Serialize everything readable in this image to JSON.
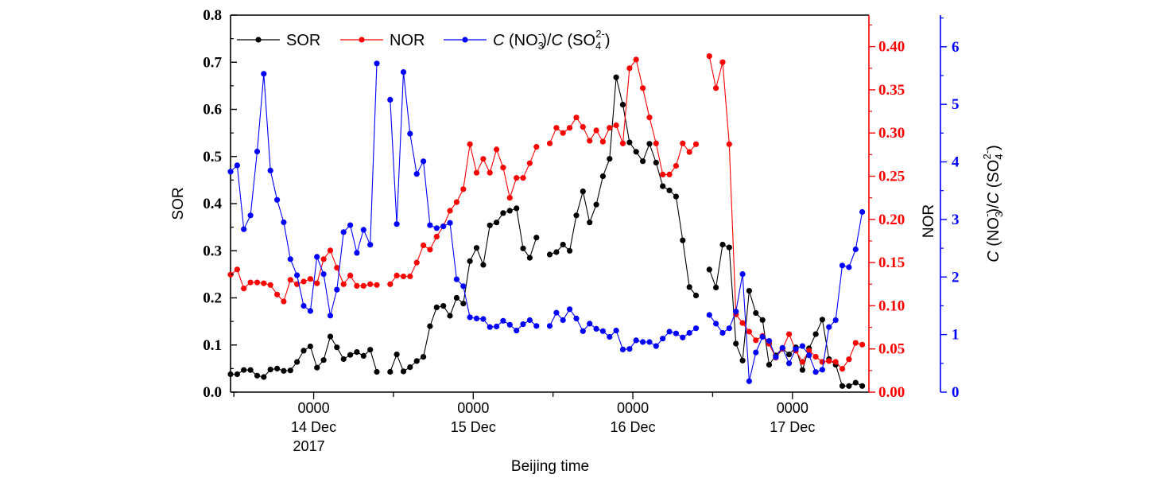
{
  "chart_data": {
    "type": "line",
    "xlabel": "Beijing time",
    "x_ticks": [
      {
        "x": 24,
        "lines": [
          "0000",
          "14 Dec",
          "2017"
        ]
      },
      {
        "x": 48,
        "lines": [
          "0000",
          "15 Dec"
        ]
      },
      {
        "x": 72,
        "lines": [
          "0000",
          "16 Dec"
        ]
      },
      {
        "x": 96,
        "lines": [
          "0000",
          "17 Dec"
        ]
      }
    ],
    "x_range": [
      11.5,
      107.5
    ],
    "axes": {
      "left": {
        "label": "SOR",
        "color": "#000000",
        "ylim": [
          0,
          0.8
        ],
        "ticks": [
          "0.0",
          "0.1",
          "0.2",
          "0.3",
          "0.4",
          "0.5",
          "0.6",
          "0.7",
          "0.8"
        ]
      },
      "right1": {
        "label": "NOR",
        "color": "#ff0000",
        "ylim": [
          0,
          0.4365
        ],
        "ticks": [
          "0.00",
          "0.05",
          "0.10",
          "0.15",
          "0.20",
          "0.25",
          "0.30",
          "0.35",
          "0.40"
        ]
      },
      "right2": {
        "label_parts": {
          "c1": "C",
          "mid1": " (NO",
          "sub1": "3",
          "sup1": "-",
          "mid2": ")/",
          "c2": "C",
          "mid3": " (SO",
          "sub2": "4",
          "sup2": "2-",
          "end": ")"
        },
        "color": "#0000ff",
        "ylim": [
          0,
          6.55
        ],
        "ticks": [
          "0",
          "1",
          "2",
          "3",
          "4",
          "5",
          "6"
        ]
      }
    },
    "legend": {
      "placement": "top-left",
      "entries": [
        {
          "label": "SOR",
          "color": "#000000"
        },
        {
          "label": "NOR",
          "color": "#ff0000"
        },
        {
          "label_parts": {
            "c1": "C",
            "mid1": " (NO",
            "sub1": "3",
            "sup1": "-",
            "mid2": ")/",
            "c2": "C",
            "mid3": " (SO",
            "sub2": "4",
            "sup2": "2-",
            "end": ")"
          },
          "color": "#0000ff"
        }
      ]
    },
    "series": [
      {
        "name": "SOR",
        "axis": "left",
        "color": "#000000",
        "points": [
          [
            11.5,
            0.038
          ],
          [
            12.5,
            0.038
          ],
          [
            13.5,
            0.047
          ],
          [
            14.5,
            0.047
          ],
          [
            15.5,
            0.035
          ],
          [
            16.5,
            0.032
          ],
          [
            17.5,
            0.048
          ],
          [
            18.5,
            0.05
          ],
          [
            19.5,
            0.045
          ],
          [
            20.5,
            0.046
          ],
          [
            21.5,
            0.064
          ],
          [
            22.5,
            0.088
          ],
          [
            23.5,
            0.097
          ],
          [
            24.5,
            0.052
          ],
          [
            25.5,
            0.068
          ],
          [
            26.5,
            0.118
          ],
          [
            27.5,
            0.095
          ],
          [
            28.5,
            0.07
          ],
          [
            29.5,
            0.079
          ],
          [
            30.5,
            0.085
          ],
          [
            31.5,
            0.077
          ],
          [
            32.5,
            0.09
          ],
          [
            33.5,
            0.043
          ],
          null,
          [
            35.5,
            0.043
          ],
          [
            36.5,
            0.08
          ],
          [
            37.5,
            0.044
          ],
          [
            38.5,
            0.053
          ],
          [
            39.5,
            0.066
          ],
          [
            40.5,
            0.075
          ],
          [
            41.5,
            0.14
          ],
          [
            42.5,
            0.18
          ],
          [
            43.5,
            0.183
          ],
          [
            44.5,
            0.162
          ],
          [
            45.5,
            0.2
          ],
          [
            46.5,
            0.188
          ],
          [
            47.5,
            0.278
          ],
          [
            48.5,
            0.306
          ],
          [
            49.5,
            0.27
          ],
          [
            50.5,
            0.354
          ],
          [
            51.5,
            0.36
          ],
          [
            52.5,
            0.38
          ],
          [
            53.5,
            0.385
          ],
          [
            54.5,
            0.39
          ],
          [
            55.5,
            0.305
          ],
          [
            56.5,
            0.285
          ],
          [
            57.5,
            0.328
          ],
          null,
          [
            59.5,
            0.292
          ],
          [
            60.5,
            0.297
          ],
          [
            61.5,
            0.313
          ],
          [
            62.5,
            0.3
          ],
          [
            63.5,
            0.375
          ],
          [
            64.5,
            0.426
          ],
          [
            65.5,
            0.36
          ],
          [
            66.5,
            0.398
          ],
          [
            67.5,
            0.458
          ],
          [
            68.5,
            0.495
          ],
          [
            69.5,
            0.668
          ],
          [
            70.5,
            0.61
          ],
          [
            71.5,
            0.53
          ],
          [
            72.5,
            0.51
          ],
          [
            73.5,
            0.49
          ],
          [
            74.5,
            0.527
          ],
          [
            75.5,
            0.487
          ],
          [
            76.5,
            0.437
          ],
          [
            77.5,
            0.428
          ],
          [
            78.5,
            0.415
          ],
          [
            79.5,
            0.322
          ],
          [
            80.5,
            0.223
          ],
          [
            81.5,
            0.205
          ],
          null,
          [
            83.5,
            0.26
          ],
          [
            84.5,
            0.222
          ],
          [
            85.5,
            0.313
          ],
          [
            86.5,
            0.307
          ],
          [
            87.5,
            0.103
          ],
          [
            88.5,
            0.067
          ],
          [
            89.5,
            0.215
          ],
          [
            90.5,
            0.168
          ],
          [
            91.5,
            0.153
          ],
          [
            92.5,
            0.058
          ],
          [
            93.5,
            0.078
          ],
          [
            94.5,
            0.093
          ],
          [
            95.5,
            0.08
          ],
          [
            96.5,
            0.095
          ],
          [
            97.5,
            0.047
          ],
          [
            98.5,
            0.093
          ],
          [
            99.5,
            0.123
          ],
          [
            100.5,
            0.154
          ],
          [
            101.5,
            0.07
          ],
          [
            102.5,
            0.058
          ],
          [
            103.5,
            0.013
          ],
          [
            104.5,
            0.013
          ],
          [
            105.5,
            0.02
          ],
          [
            106.5,
            0.013
          ]
        ]
      },
      {
        "name": "NOR",
        "axis": "right1",
        "color": "#ff0000",
        "points": [
          [
            11.5,
            0.136
          ],
          [
            12.5,
            0.142
          ],
          [
            13.5,
            0.12
          ],
          [
            14.5,
            0.127
          ],
          [
            15.5,
            0.127
          ],
          [
            16.5,
            0.126
          ],
          [
            17.5,
            0.124
          ],
          [
            18.5,
            0.113
          ],
          [
            19.5,
            0.105
          ],
          [
            20.5,
            0.13
          ],
          [
            21.5,
            0.125
          ],
          [
            22.5,
            0.128
          ],
          [
            23.5,
            0.131
          ],
          [
            24.5,
            0.126
          ],
          [
            25.5,
            0.154
          ],
          [
            26.5,
            0.164
          ],
          [
            27.5,
            0.144
          ],
          [
            28.5,
            0.125
          ],
          [
            29.5,
            0.135
          ],
          [
            30.5,
            0.123
          ],
          [
            31.5,
            0.123
          ],
          [
            32.5,
            0.125
          ],
          [
            33.5,
            0.124
          ],
          null,
          [
            35.5,
            0.125
          ],
          [
            36.5,
            0.135
          ],
          [
            37.5,
            0.134
          ],
          [
            38.5,
            0.134
          ],
          [
            39.5,
            0.15
          ],
          [
            40.5,
            0.17
          ],
          [
            41.5,
            0.165
          ],
          [
            42.5,
            0.18
          ],
          [
            43.5,
            0.192
          ],
          [
            44.5,
            0.21
          ],
          [
            45.5,
            0.22
          ],
          [
            46.5,
            0.235
          ],
          [
            47.5,
            0.287
          ],
          [
            48.5,
            0.254
          ],
          [
            49.5,
            0.27
          ],
          [
            50.5,
            0.254
          ],
          [
            51.5,
            0.281
          ],
          [
            52.5,
            0.26
          ],
          [
            53.5,
            0.225
          ],
          [
            54.5,
            0.248
          ],
          [
            55.5,
            0.248
          ],
          [
            56.5,
            0.265
          ],
          [
            57.5,
            0.284
          ],
          null,
          [
            59.5,
            0.288
          ],
          [
            60.5,
            0.306
          ],
          [
            61.5,
            0.3
          ],
          [
            62.5,
            0.306
          ],
          [
            63.5,
            0.318
          ],
          [
            64.5,
            0.307
          ],
          [
            65.5,
            0.291
          ],
          [
            66.5,
            0.303
          ],
          [
            67.5,
            0.29
          ],
          [
            68.5,
            0.306
          ],
          [
            69.5,
            0.309
          ],
          [
            70.5,
            0.288
          ],
          [
            71.5,
            0.375
          ],
          [
            72.5,
            0.385
          ],
          [
            73.5,
            0.352
          ],
          [
            74.5,
            0.318
          ],
          [
            75.5,
            0.288
          ],
          [
            76.5,
            0.252
          ],
          [
            77.5,
            0.252
          ],
          [
            78.5,
            0.262
          ],
          [
            79.5,
            0.288
          ],
          [
            80.5,
            0.278
          ],
          [
            81.5,
            0.287
          ],
          null,
          [
            83.5,
            0.389
          ],
          [
            84.5,
            0.352
          ],
          [
            85.5,
            0.382
          ],
          [
            86.5,
            0.287
          ],
          [
            87.5,
            0.09
          ],
          [
            88.5,
            0.08
          ],
          [
            89.5,
            0.07
          ],
          [
            90.5,
            0.06
          ],
          [
            91.5,
            0.065
          ],
          [
            92.5,
            0.056
          ],
          [
            93.5,
            0.04
          ],
          [
            94.5,
            0.05
          ],
          [
            95.5,
            0.067
          ],
          [
            96.5,
            0.048
          ],
          [
            97.5,
            0.035
          ],
          [
            98.5,
            0.048
          ],
          [
            99.5,
            0.041
          ],
          [
            100.5,
            0.035
          ],
          [
            101.5,
            0.036
          ],
          [
            102.5,
            0.035
          ],
          [
            103.5,
            0.027
          ],
          [
            104.5,
            0.038
          ],
          [
            105.5,
            0.057
          ],
          [
            106.5,
            0.055
          ]
        ]
      },
      {
        "name": "C(NO3-)/C(SO4 2-)",
        "axis": "right2",
        "color": "#0000ff",
        "points": [
          [
            11.5,
            3.83
          ],
          [
            12.5,
            3.94
          ],
          [
            13.5,
            2.83
          ],
          [
            14.5,
            3.07
          ],
          [
            15.5,
            4.18
          ],
          [
            16.5,
            5.53
          ],
          [
            17.5,
            3.85
          ],
          [
            18.5,
            3.34
          ],
          [
            19.5,
            2.95
          ],
          [
            20.5,
            2.31
          ],
          [
            21.5,
            2.03
          ],
          [
            22.5,
            1.5
          ],
          [
            23.5,
            1.41
          ],
          [
            24.5,
            2.35
          ],
          [
            25.5,
            2.05
          ],
          [
            26.5,
            1.33
          ],
          [
            27.5,
            1.78
          ],
          [
            28.5,
            2.78
          ],
          [
            29.5,
            2.9
          ],
          [
            30.5,
            2.42
          ],
          [
            31.5,
            2.82
          ],
          [
            32.5,
            2.56
          ],
          [
            33.5,
            5.71
          ],
          null,
          [
            35.5,
            5.08
          ],
          [
            36.5,
            2.92
          ],
          [
            37.5,
            5.56
          ],
          [
            38.5,
            4.49
          ],
          [
            39.5,
            3.79
          ],
          [
            40.5,
            4.01
          ],
          [
            41.5,
            2.9
          ],
          [
            42.5,
            2.85
          ],
          [
            43.5,
            2.88
          ],
          [
            44.5,
            2.94
          ],
          [
            45.5,
            1.96
          ],
          [
            46.5,
            1.84
          ],
          [
            47.5,
            1.3
          ],
          [
            48.5,
            1.28
          ],
          [
            49.5,
            1.27
          ],
          [
            50.5,
            1.13
          ],
          [
            51.5,
            1.14
          ],
          [
            52.5,
            1.24
          ],
          [
            53.5,
            1.17
          ],
          [
            54.5,
            1.07
          ],
          [
            55.5,
            1.18
          ],
          [
            56.5,
            1.25
          ],
          [
            57.5,
            1.15
          ],
          null,
          [
            59.5,
            1.15
          ],
          [
            60.5,
            1.38
          ],
          [
            61.5,
            1.25
          ],
          [
            62.5,
            1.44
          ],
          [
            63.5,
            1.28
          ],
          [
            64.5,
            1.06
          ],
          [
            65.5,
            1.19
          ],
          [
            66.5,
            1.1
          ],
          [
            67.5,
            1.06
          ],
          [
            68.5,
            0.96
          ],
          [
            69.5,
            1.07
          ],
          [
            70.5,
            0.74
          ],
          [
            71.5,
            0.75
          ],
          [
            72.5,
            0.9
          ],
          [
            73.5,
            0.87
          ],
          [
            74.5,
            0.87
          ],
          [
            75.5,
            0.8
          ],
          [
            76.5,
            0.93
          ],
          [
            77.5,
            1.05
          ],
          [
            78.5,
            1.02
          ],
          [
            79.5,
            0.95
          ],
          [
            80.5,
            1.03
          ],
          [
            81.5,
            1.11
          ],
          null,
          [
            83.5,
            1.34
          ],
          [
            84.5,
            1.19
          ],
          [
            85.5,
            1.03
          ],
          [
            86.5,
            1.11
          ],
          [
            87.5,
            1.4
          ],
          [
            88.5,
            2.05
          ],
          [
            89.5,
            0.19
          ],
          [
            90.5,
            0.69
          ],
          [
            91.5,
            0.96
          ],
          [
            92.5,
            0.89
          ],
          [
            93.5,
            0.61
          ],
          [
            94.5,
            0.77
          ],
          [
            95.5,
            0.5
          ],
          [
            96.5,
            0.75
          ],
          [
            97.5,
            0.8
          ],
          [
            98.5,
            0.64
          ],
          [
            99.5,
            0.35
          ],
          [
            100.5,
            0.39
          ],
          [
            101.5,
            1.13
          ],
          [
            102.5,
            1.25
          ],
          [
            103.5,
            2.2
          ],
          [
            104.5,
            2.17
          ],
          [
            105.5,
            2.48
          ],
          [
            106.5,
            3.13
          ]
        ]
      }
    ]
  }
}
